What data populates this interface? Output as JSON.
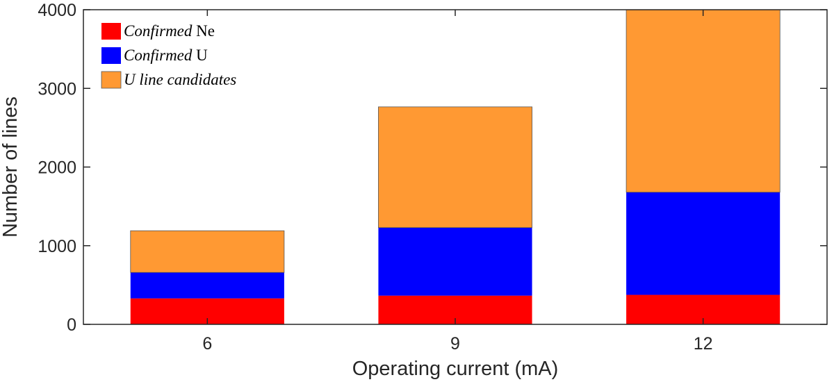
{
  "chart_data": {
    "type": "bar",
    "stacked": true,
    "categories": [
      "6",
      "9",
      "12"
    ],
    "series": [
      {
        "name": "Confirmed Ne",
        "color": "#ff0000",
        "values": [
          330,
          365,
          375
        ]
      },
      {
        "name": "Confirmed U",
        "color": "#0000ff",
        "values": [
          330,
          865,
          1305
        ]
      },
      {
        "name": "U line candidates",
        "color": "#ff9933",
        "values": [
          530,
          1535,
          2320
        ]
      }
    ],
    "legend": {
      "placement": "top-left",
      "entries": [
        {
          "italic": "Confirmed",
          "plain": " Ne"
        },
        {
          "italic": "Confirmed",
          "plain": " U"
        },
        {
          "italic": "U line candidates",
          "plain": ""
        }
      ]
    },
    "xlabel": "Operating current (mA)",
    "ylabel": "Number of lines",
    "ylim": [
      0,
      4000
    ],
    "yticks": [
      0,
      1000,
      2000,
      3000,
      4000
    ],
    "grid": false
  }
}
